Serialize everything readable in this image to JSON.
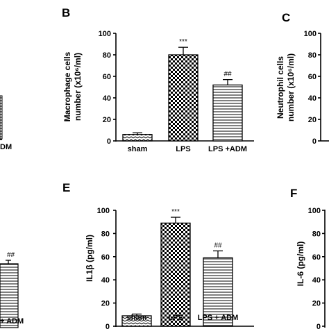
{
  "panels": {
    "b": "B",
    "c": "C",
    "e": "E",
    "f": "F"
  },
  "chart_data": [
    {
      "id": "B",
      "type": "bar",
      "ylabel_line1": "Macrophage  cells",
      "ylabel_line2": "number (x10⁶/ml)",
      "ylim": [
        0,
        100
      ],
      "yticks": [
        0,
        20,
        40,
        60,
        80,
        100
      ],
      "categories": [
        "sham",
        "LPS",
        "LPS +ADM"
      ],
      "values": [
        6,
        80,
        52
      ],
      "errors": [
        1.5,
        7,
        5
      ],
      "annotations": [
        "",
        "***",
        "##"
      ],
      "patterns": [
        "zigzag",
        "checker",
        "hlines"
      ]
    },
    {
      "id": "E",
      "type": "bar",
      "ylabel": "IL1β (pg/ml)",
      "ylim": [
        0,
        100
      ],
      "yticks": [
        0,
        20,
        40,
        60,
        80,
        100
      ],
      "categories": [
        "sham",
        "LPS",
        "LPS + ADM"
      ],
      "values": [
        9,
        89,
        59
      ],
      "errors": [
        1.5,
        5,
        6
      ],
      "annotations": [
        "",
        "***",
        "##"
      ],
      "patterns": [
        "zigzag",
        "checker",
        "hlines"
      ]
    }
  ],
  "partial_panels": {
    "c_ylabel_line1": "Neutrophil cells",
    "c_ylabel_line2": "number (x10⁶/ml)",
    "c_yticks": [
      "100",
      "80",
      "60",
      "40",
      "20",
      "0"
    ],
    "f_ylabel": "IL-6 (pg/ml)",
    "f_yticks": [
      "100",
      "80",
      "60",
      "40",
      "20",
      "0"
    ],
    "a_category_fragment": "DM",
    "d_annotation": "##",
    "d_category_fragment": "+ ADM"
  }
}
